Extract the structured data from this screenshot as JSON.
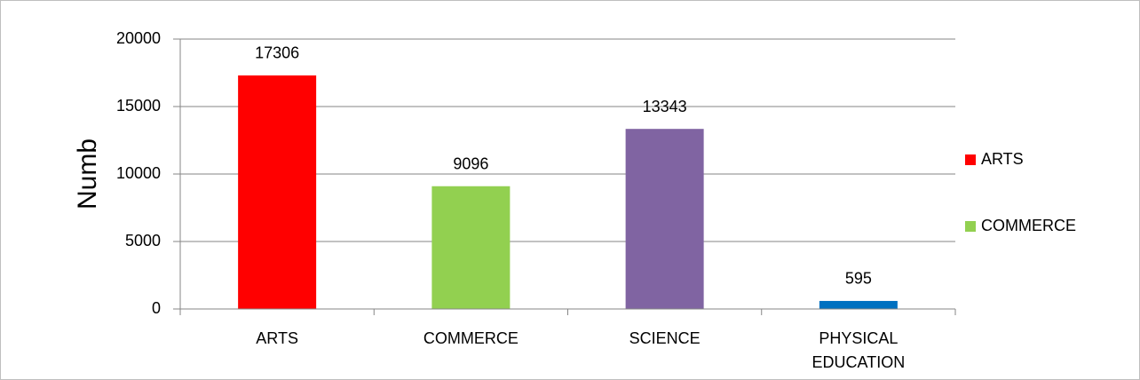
{
  "chart_data": {
    "type": "bar",
    "y_label": "Numb",
    "categories": [
      "ARTS",
      "COMMERCE",
      "SCIENCE",
      "PHYSICAL EDUCATION"
    ],
    "values": [
      17306,
      9096,
      13343,
      595
    ],
    "colors": [
      "#ff0000",
      "#92d050",
      "#8064a2",
      "#0070c0"
    ],
    "ylim": [
      0,
      20000
    ],
    "yticks": [
      0,
      5000,
      10000,
      15000,
      20000
    ],
    "grid": true,
    "legend": "right",
    "legend_count": 2
  }
}
